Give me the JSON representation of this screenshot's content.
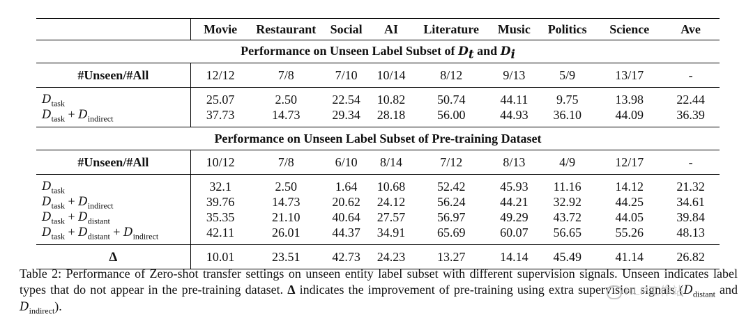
{
  "table": {
    "columns": [
      "Movie",
      "Restaurant",
      "Social",
      "AI",
      "Literature",
      "Music",
      "Politics",
      "Science",
      "Ave"
    ],
    "section1": {
      "title_prefix": "Performance on Unseen Label Subset of ",
      "title_sym1": "D",
      "title_sub1": "t",
      "title_and": " and ",
      "title_sym2": "D",
      "title_sub2": "i",
      "unseen_label": "#Unseen/#All",
      "unseen_values": [
        "12/12",
        "7/8",
        "7/10",
        "10/14",
        "8/12",
        "9/13",
        "5/9",
        "13/17",
        "-"
      ],
      "rows": [
        {
          "label_parts": [
            {
              "sym": "D",
              "sub": "task"
            }
          ],
          "values": [
            "25.07",
            "2.50",
            "22.54",
            "10.82",
            "50.74",
            "44.11",
            "9.75",
            "13.98",
            "22.44"
          ]
        },
        {
          "label_parts": [
            {
              "sym": "D",
              "sub": "task"
            },
            {
              "sym": "D",
              "sub": "indirect"
            }
          ],
          "values": [
            "37.73",
            "14.73",
            "29.34",
            "28.18",
            "56.00",
            "44.93",
            "36.10",
            "44.09",
            "36.39"
          ]
        }
      ]
    },
    "section2": {
      "title": "Performance on Unseen Label Subset of Pre-training Dataset",
      "unseen_label": "#Unseen/#All",
      "unseen_values": [
        "10/12",
        "7/8",
        "6/10",
        "8/14",
        "7/12",
        "8/13",
        "4/9",
        "12/17",
        "-"
      ],
      "rows": [
        {
          "label_parts": [
            {
              "sym": "D",
              "sub": "task"
            }
          ],
          "values": [
            "32.1",
            "2.50",
            "1.64",
            "10.68",
            "52.42",
            "45.93",
            "11.16",
            "14.12",
            "21.32"
          ]
        },
        {
          "label_parts": [
            {
              "sym": "D",
              "sub": "task"
            },
            {
              "sym": "D",
              "sub": "indirect"
            }
          ],
          "values": [
            "39.76",
            "14.73",
            "20.62",
            "24.12",
            "56.24",
            "44.21",
            "32.92",
            "44.25",
            "34.61"
          ]
        },
        {
          "label_parts": [
            {
              "sym": "D",
              "sub": "task"
            },
            {
              "sym": "D",
              "sub": "distant"
            }
          ],
          "values": [
            "35.35",
            "21.10",
            "40.64",
            "27.57",
            "56.97",
            "49.29",
            "43.72",
            "44.05",
            "39.84"
          ]
        },
        {
          "label_parts": [
            {
              "sym": "D",
              "sub": "task"
            },
            {
              "sym": "D",
              "sub": "distant"
            },
            {
              "sym": "D",
              "sub": "indirect"
            }
          ],
          "values": [
            "42.11",
            "26.01",
            "44.37",
            "34.91",
            "65.69",
            "60.07",
            "56.65",
            "55.26",
            "48.13"
          ]
        }
      ]
    },
    "delta": {
      "label": "Δ",
      "values": [
        "10.01",
        "23.51",
        "42.73",
        "24.23",
        "13.27",
        "14.14",
        "45.49",
        "41.14",
        "26.82"
      ]
    }
  },
  "plus": " + ",
  "caption": {
    "part1": "Table 2: Performance of Zero-shot transfer settings on unseen entity label subset with different supervision signals. Unseen indicates label types that do not appear in the pre-training dataset. ",
    "delta_sym": "Δ",
    "part2": " indicates the improvement of pre-training using extra supervision signals (",
    "sym_a": "D",
    "sub_a": "distant",
    "mid": " and ",
    "sym_b": "D",
    "sub_b": "indirect",
    "end": ")."
  },
  "watermark": {
    "text": "NLP工作站",
    "icon": "wechat-icon"
  }
}
